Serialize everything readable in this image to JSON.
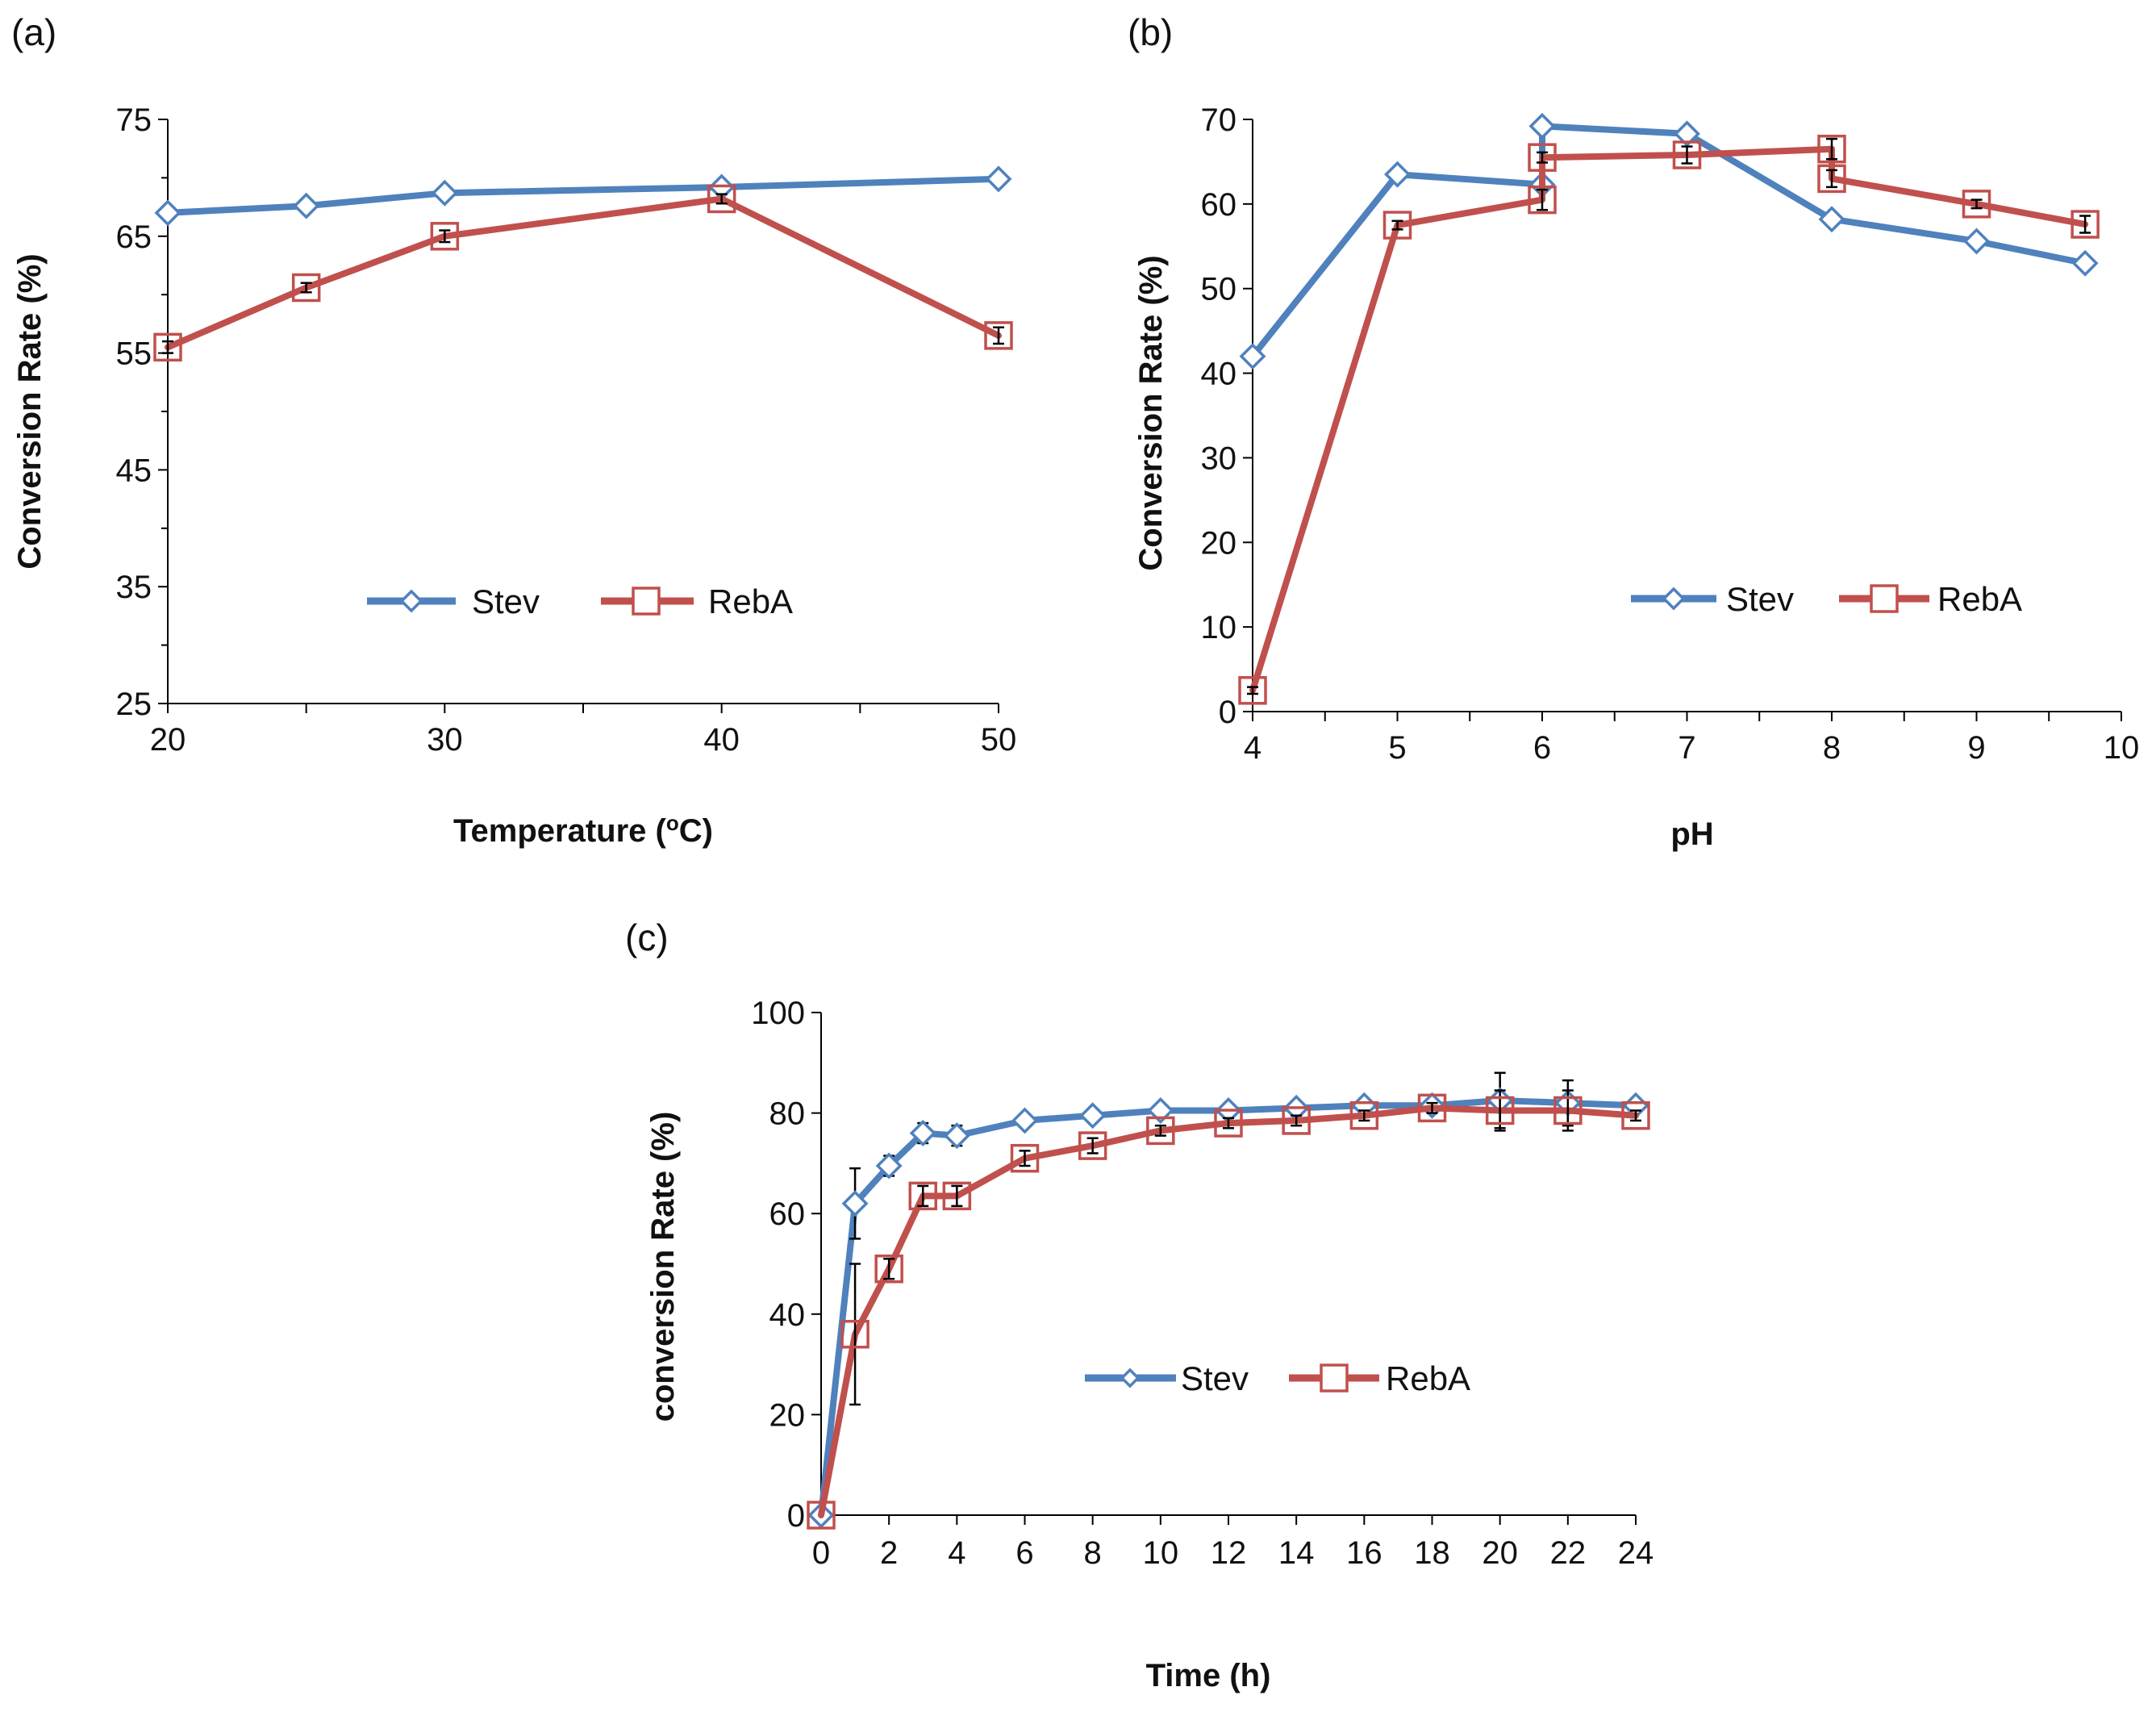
{
  "chart_data": [
    {
      "type": "line",
      "panel_label": "(a)",
      "title": "",
      "xlabel": "Temperature (",
      "xlabel_sup": "o",
      "xlabel_suffix": "C)",
      "ylabel": "Conversion Rate (%)",
      "xlim": [
        20,
        50
      ],
      "ylim": [
        25,
        75
      ],
      "xticks": [
        20,
        30,
        40,
        50
      ],
      "xminor": [
        25,
        35,
        45
      ],
      "yticks": [
        25,
        35,
        45,
        55,
        65,
        75
      ],
      "yminor": [
        30,
        40,
        50,
        60,
        70
      ],
      "legend_position": "center",
      "series": [
        {
          "name": "Stev",
          "color": "#4F81BD",
          "marker": "diamond",
          "x": [
            20,
            25,
            30,
            40,
            50
          ],
          "y": [
            67.0,
            67.6,
            68.7,
            69.2,
            69.9
          ],
          "err": [
            0.3,
            0.3,
            0.3,
            0.3,
            0.5
          ]
        },
        {
          "name": "RebA",
          "color": "#C0504D",
          "marker": "square",
          "x": [
            20,
            25,
            30,
            40,
            50
          ],
          "y": [
            55.5,
            60.6,
            65.0,
            68.2,
            56.5
          ],
          "err": [
            0.5,
            0.4,
            0.5,
            0.4,
            0.7
          ]
        }
      ]
    },
    {
      "type": "line",
      "panel_label": "(b)",
      "title": "",
      "xlabel": "pH",
      "ylabel": "Conversion Rate (%)",
      "xlim": [
        4,
        10
      ],
      "ylim": [
        0,
        70
      ],
      "xticks": [
        4,
        5,
        6,
        7,
        8,
        9,
        10
      ],
      "xminor": [
        4.5,
        5.5,
        6.5,
        7.5,
        8.5,
        9.5
      ],
      "yticks": [
        0,
        10,
        20,
        30,
        40,
        50,
        60,
        70
      ],
      "legend_position": "center-right",
      "series": [
        {
          "name": "Stev",
          "color": "#4F81BD",
          "marker": "diamond",
          "x": [
            4,
            5,
            6,
            6,
            7,
            8,
            9,
            9.75
          ],
          "y": [
            42.0,
            63.5,
            62.3,
            69.2,
            68.3,
            58.2,
            55.6,
            53.0
          ],
          "err": [
            0.4,
            0.4,
            0.5,
            0.5,
            0.6,
            0.6,
            0.4,
            0.6
          ]
        },
        {
          "name": "RebA",
          "color": "#C0504D",
          "marker": "square",
          "x": [
            4,
            5,
            6,
            6,
            7,
            8,
            8,
            9,
            9.75
          ],
          "y": [
            2.5,
            57.5,
            60.5,
            65.5,
            65.8,
            66.5,
            63.0,
            60.0,
            57.6
          ],
          "err": [
            0.4,
            0.5,
            1.2,
            0.6,
            1.0,
            1.2,
            1.0,
            0.5,
            1.0
          ]
        }
      ]
    },
    {
      "type": "line",
      "panel_label": "(c)",
      "title": "",
      "xlabel": "Time (h)",
      "ylabel": "conversion Rate (%)",
      "xlim": [
        0,
        24
      ],
      "ylim": [
        0,
        100
      ],
      "xticks": [
        0,
        2,
        4,
        6,
        8,
        10,
        12,
        14,
        16,
        18,
        20,
        22,
        24
      ],
      "yticks": [
        0,
        20,
        40,
        60,
        80,
        100
      ],
      "legend_position": "center",
      "series": [
        {
          "name": "Stev",
          "color": "#4F81BD",
          "marker": "diamond",
          "x": [
            0,
            1,
            2,
            3,
            4,
            6,
            8,
            10,
            12,
            14,
            16,
            18,
            20,
            22,
            24
          ],
          "y": [
            0,
            62,
            69.5,
            76,
            75.5,
            78.5,
            79.5,
            80.5,
            80.5,
            81,
            81.5,
            81.5,
            82.5,
            82,
            81.5
          ],
          "err": [
            0,
            7,
            2,
            2,
            2,
            1,
            1,
            1,
            1,
            1,
            1,
            1,
            5.5,
            4.5,
            1
          ]
        },
        {
          "name": "RebA",
          "color": "#C0504D",
          "marker": "square",
          "x": [
            0,
            1,
            2,
            3,
            4,
            6,
            8,
            10,
            12,
            14,
            16,
            18,
            20,
            22,
            24
          ],
          "y": [
            0,
            36,
            49,
            63.5,
            63.5,
            71,
            73.5,
            76.5,
            78,
            78.5,
            79.5,
            81,
            80.5,
            80.5,
            79.5
          ],
          "err": [
            0,
            14,
            2,
            2,
            2,
            1.5,
            1.5,
            1,
            1,
            1,
            1,
            1,
            4,
            4,
            1
          ]
        }
      ]
    }
  ]
}
